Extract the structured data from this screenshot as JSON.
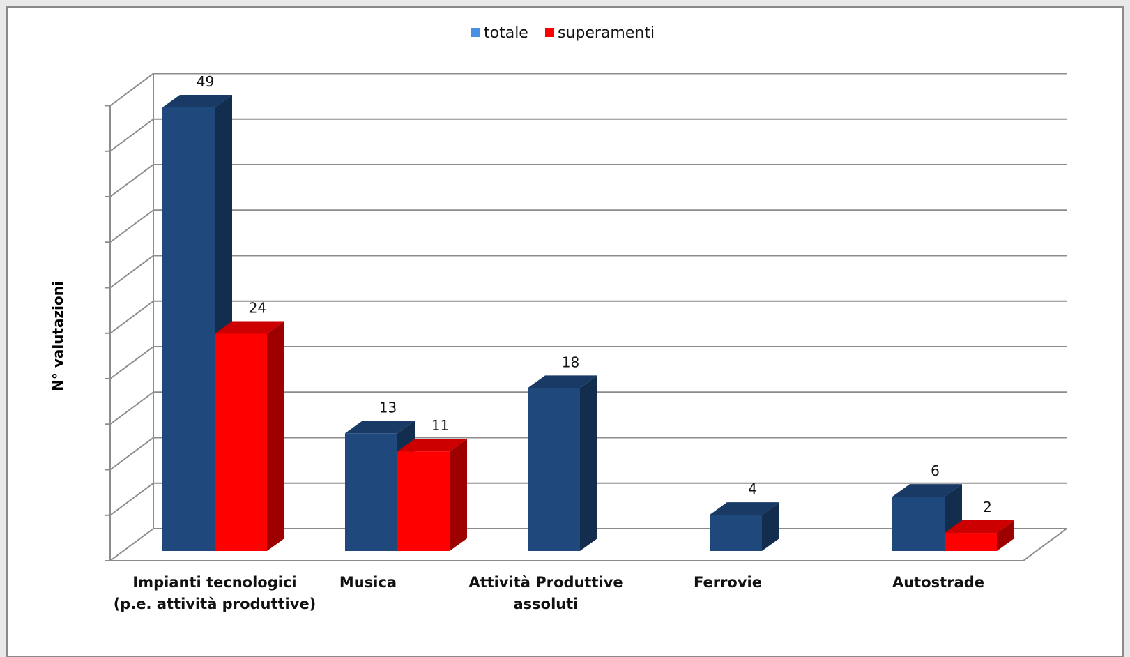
{
  "chart_data": {
    "type": "bar",
    "style": "3d-clustered-column",
    "title": "",
    "xlabel": "",
    "ylabel": "N° valutazioni",
    "ylim": [
      0,
      50
    ],
    "y_major_step": 5,
    "grid": true,
    "legend_position": "top",
    "categories": [
      [
        "Impianti tecnologici",
        "(p.e. attività produttive)"
      ],
      [
        "Musica"
      ],
      [
        "Attività Produttive",
        "assoluti"
      ],
      [
        "Ferrovie"
      ],
      [
        "Autostrade"
      ]
    ],
    "series": [
      {
        "name": "totale",
        "values": [
          49,
          13,
          18,
          4,
          6
        ],
        "color": "#1f497d",
        "legend_color": "#4a90e2"
      },
      {
        "name": "superamenti",
        "values": [
          24,
          11,
          null,
          null,
          2
        ],
        "color": "#ff0000",
        "legend_color": "#ff0000"
      }
    ]
  }
}
